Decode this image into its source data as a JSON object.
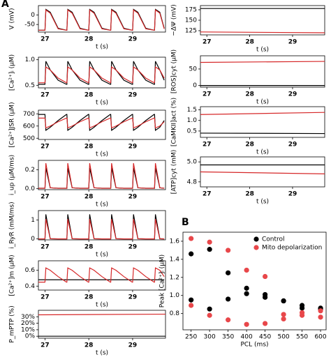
{
  "chart_data": [
    {
      "type": "line",
      "panel_label": "A",
      "ylabel": "V (mV)",
      "xlabel": "t (s)",
      "xlim": [
        26.85,
        29.75
      ],
      "xticks": [
        27,
        28,
        29
      ],
      "ylim": [
        -90,
        50
      ],
      "yticks": [
        -50,
        0
      ],
      "x": [
        26.85,
        27,
        27.02,
        27.12,
        27.3,
        27.49,
        27.5,
        27.52,
        27.62,
        27.8,
        27.99,
        28,
        28.02,
        28.12,
        28.3,
        28.49,
        28.5,
        28.52,
        28.62,
        28.8,
        28.99,
        29,
        29.02,
        29.12,
        29.3,
        29.49,
        29.5,
        29.52,
        29.62,
        29.72
      ],
      "series": [
        {
          "color": "#000000",
          "values": [
            -80,
            -80,
            30,
            15,
            -70,
            -80,
            -80,
            30,
            15,
            -70,
            -80,
            -80,
            30,
            15,
            -70,
            -80,
            -80,
            30,
            15,
            -70,
            -80,
            -80,
            30,
            15,
            -70,
            -80,
            -80,
            30,
            15,
            -70
          ]
        },
        {
          "color": "#d62728",
          "values": [
            -80,
            -80,
            27,
            10,
            -73,
            -80,
            -80,
            27,
            10,
            -73,
            -80,
            -80,
            27,
            10,
            -73,
            -80,
            -80,
            27,
            10,
            -73,
            -80,
            -80,
            27,
            10,
            -73,
            -80,
            -80,
            27,
            10,
            -73
          ]
        }
      ]
    },
    {
      "type": "line",
      "ylabel": "[Ca²⁺]ᵢ (µM)",
      "xlabel": "t (s)",
      "xlim": [
        26.85,
        29.75
      ],
      "xticks": [
        27,
        28,
        29
      ],
      "ylim": [
        0.45,
        1.05
      ],
      "yticks": [
        {
          "value": 0.5,
          "label": "0.5"
        },
        {
          "value": 1.0,
          "label": "1.0"
        }
      ],
      "x": [
        26.85,
        27,
        27.02,
        27.12,
        27.3,
        27.49,
        27.5,
        27.52,
        27.62,
        27.8,
        27.99,
        28,
        28.02,
        28.12,
        28.3,
        28.49,
        28.5,
        28.52,
        28.62,
        28.8,
        28.99,
        29,
        29.02,
        29.12,
        29.3,
        29.49,
        29.5,
        29.52,
        29.62,
        29.72
      ],
      "series": [
        {
          "color": "#000000",
          "values": [
            0.52,
            0.52,
            0.97,
            0.8,
            0.6,
            0.52,
            0.52,
            0.97,
            0.8,
            0.6,
            0.52,
            0.52,
            0.97,
            0.8,
            0.6,
            0.52,
            0.52,
            0.97,
            0.8,
            0.6,
            0.52,
            0.52,
            0.97,
            0.8,
            0.6,
            0.52,
            0.52,
            0.97,
            0.8,
            0.6
          ]
        },
        {
          "color": "#d62728",
          "values": [
            0.55,
            0.55,
            0.86,
            0.8,
            0.64,
            0.55,
            0.55,
            0.86,
            0.8,
            0.64,
            0.55,
            0.55,
            0.86,
            0.8,
            0.64,
            0.55,
            0.55,
            0.86,
            0.8,
            0.64,
            0.55,
            0.55,
            0.86,
            0.8,
            0.64,
            0.55,
            0.55,
            0.86,
            0.8,
            0.64
          ]
        }
      ]
    },
    {
      "type": "line",
      "ylabel": "[Ca²⁺]JSR (µM)",
      "xlabel": "t (s)",
      "xlim": [
        26.85,
        29.75
      ],
      "xticks": [
        27,
        28,
        29
      ],
      "ylim": [
        490,
        730
      ],
      "yticks": [
        500,
        600,
        700
      ],
      "x": [
        26.85,
        27,
        27.02,
        27.12,
        27.3,
        27.49,
        27.5,
        27.52,
        27.62,
        27.8,
        27.99,
        28,
        28.02,
        28.12,
        28.3,
        28.49,
        28.5,
        28.52,
        28.62,
        28.8,
        28.99,
        29,
        29.02,
        29.12,
        29.3,
        29.49,
        29.5,
        29.52,
        29.62,
        29.72
      ],
      "series": [
        {
          "color": "#000000",
          "values": [
            695,
            695,
            565,
            590,
            645,
            695,
            695,
            565,
            590,
            645,
            695,
            695,
            565,
            590,
            645,
            695,
            695,
            565,
            590,
            645,
            695,
            695,
            565,
            590,
            645,
            695,
            695,
            565,
            590,
            645
          ]
        },
        {
          "color": "#d62728",
          "values": [
            665,
            665,
            585,
            600,
            635,
            665,
            665,
            585,
            600,
            635,
            665,
            665,
            585,
            600,
            635,
            665,
            665,
            585,
            600,
            635,
            665,
            665,
            585,
            600,
            635,
            665,
            665,
            585,
            600,
            635
          ]
        }
      ]
    },
    {
      "type": "line",
      "ylabel": "i_up (µM/ms)",
      "xlabel": "t (s)",
      "xlim": [
        26.85,
        29.75
      ],
      "xticks": [
        27,
        28,
        29
      ],
      "ylim": [
        -0.01,
        0.3
      ],
      "yticks": [
        {
          "value": 0.0,
          "label": "0.0"
        },
        {
          "value": 0.2,
          "label": "0.2"
        }
      ],
      "x": [
        26.85,
        27,
        27.02,
        27.12,
        27.3,
        27.49,
        27.5,
        27.52,
        27.62,
        27.8,
        27.99,
        28,
        28.02,
        28.12,
        28.3,
        28.49,
        28.5,
        28.52,
        28.62,
        28.8,
        28.99,
        29,
        29.02,
        29.12,
        29.3,
        29.49,
        29.5,
        29.52,
        29.62,
        29.72
      ],
      "series": [
        {
          "color": "#000000",
          "values": [
            0.005,
            0.005,
            0.22,
            0.01,
            0.005,
            0.005,
            0.005,
            0.22,
            0.01,
            0.005,
            0.005,
            0.005,
            0.22,
            0.01,
            0.005,
            0.005,
            0.005,
            0.22,
            0.01,
            0.005,
            0.005,
            0.005,
            0.22,
            0.01,
            0.005,
            0.005,
            0.005,
            0.22,
            0.01,
            0.005
          ]
        },
        {
          "color": "#d62728",
          "values": [
            0.005,
            0.005,
            0.27,
            0.01,
            0.005,
            0.005,
            0.005,
            0.27,
            0.01,
            0.005,
            0.005,
            0.005,
            0.27,
            0.01,
            0.005,
            0.005,
            0.005,
            0.27,
            0.01,
            0.005,
            0.005,
            0.005,
            0.27,
            0.01,
            0.005,
            0.005,
            0.005,
            0.27,
            0.01,
            0.005
          ]
        }
      ]
    },
    {
      "type": "line",
      "ylabel": "i_RyR (mM/ms)",
      "xlabel": "t (s)",
      "xlim": [
        26.85,
        29.75
      ],
      "xticks": [
        27,
        28,
        29
      ],
      "ylim": [
        -0.05,
        1.5
      ],
      "yticks": [
        0,
        1
      ],
      "x": [
        26.85,
        27,
        27.02,
        27.12,
        27.3,
        27.49,
        27.5,
        27.52,
        27.62,
        27.8,
        27.99,
        28,
        28.02,
        28.12,
        28.3,
        28.49,
        28.5,
        28.52,
        28.62,
        28.8,
        28.99,
        29,
        29.02,
        29.12,
        29.3,
        29.49,
        29.5,
        29.52,
        29.62,
        29.72
      ],
      "series": [
        {
          "color": "#000000",
          "values": [
            0,
            0,
            1.3,
            0.01,
            0,
            0,
            0,
            1.3,
            0.01,
            0,
            0,
            0,
            1.3,
            0.01,
            0,
            0,
            0,
            1.3,
            0.01,
            0,
            0,
            0,
            1.3,
            0.01,
            0,
            0,
            0,
            1.3,
            0.01,
            0
          ]
        },
        {
          "color": "#d62728",
          "values": [
            0,
            0,
            1.05,
            0.01,
            0,
            0,
            0,
            1.05,
            0.01,
            0,
            0,
            0,
            1.05,
            0.01,
            0,
            0,
            0,
            1.05,
            0.01,
            0,
            0,
            0,
            1.05,
            0.01,
            0,
            0,
            0,
            1.05,
            0.01,
            0
          ]
        }
      ]
    },
    {
      "type": "line",
      "ylabel": "[Ca²⁺]m (µM)",
      "xlabel": "t (s)",
      "xlim": [
        26.85,
        29.75
      ],
      "xticks": [
        27,
        28,
        29
      ],
      "ylim": [
        0.35,
        0.72
      ],
      "yticks": [
        {
          "value": 0.4,
          "label": "0.4"
        },
        {
          "value": 0.6,
          "label": "0.6"
        }
      ],
      "x": [
        26.85,
        27,
        27.02,
        27.12,
        27.3,
        27.49,
        27.5,
        27.52,
        27.62,
        27.8,
        27.99,
        28,
        28.02,
        28.12,
        28.3,
        28.49,
        28.5,
        28.52,
        28.62,
        28.8,
        28.99,
        29,
        29.02,
        29.12,
        29.3,
        29.49,
        29.5,
        29.52,
        29.62,
        29.72
      ],
      "series": [
        {
          "color": "#000000",
          "values": [
            0.48,
            0.48,
            0.48,
            0.48,
            0.48,
            0.48,
            0.48,
            0.48,
            0.48,
            0.48,
            0.48,
            0.48,
            0.48,
            0.48,
            0.48,
            0.48,
            0.48,
            0.48,
            0.48,
            0.48,
            0.48,
            0.48,
            0.48,
            0.48,
            0.48,
            0.48,
            0.48,
            0.48,
            0.48,
            0.48
          ]
        },
        {
          "color": "#d62728",
          "values": [
            0.45,
            0.45,
            0.63,
            0.6,
            0.52,
            0.45,
            0.45,
            0.63,
            0.6,
            0.52,
            0.45,
            0.45,
            0.63,
            0.6,
            0.52,
            0.45,
            0.45,
            0.63,
            0.6,
            0.52,
            0.45,
            0.45,
            0.63,
            0.6,
            0.52,
            0.45,
            0.45,
            0.63,
            0.6,
            0.52
          ]
        }
      ]
    },
    {
      "type": "line",
      "ylabel": "P_mPTP (%)",
      "xlabel": "t (s)",
      "xlim": [
        26.85,
        29.75
      ],
      "xticks": [
        27,
        28,
        29
      ],
      "ylim": [
        -3,
        40
      ],
      "yticks": [
        {
          "value": 0,
          "label": "0%"
        },
        {
          "value": 10,
          "label": "10%"
        },
        {
          "value": 20,
          "label": "20%"
        },
        {
          "value": 30,
          "label": "30%"
        }
      ],
      "x": [
        26.85,
        29.75
      ],
      "series": [
        {
          "color": "#000000",
          "values": [
            0,
            0
          ]
        },
        {
          "color": "#d62728",
          "values": [
            33,
            34
          ]
        }
      ]
    },
    {
      "type": "line",
      "ylabel": "−ΔΨ (mV)",
      "xlabel": "t (s)",
      "xlim": [
        26.85,
        29.75
      ],
      "xticks": [
        27,
        28,
        29
      ],
      "ylim": [
        115,
        185
      ],
      "yticks": [
        125,
        150,
        175
      ],
      "x": [
        26.85,
        29.75
      ],
      "series": [
        {
          "color": "#000000",
          "values": [
            178,
            178
          ]
        },
        {
          "color": "#d62728",
          "values": [
            122,
            120
          ]
        }
      ]
    },
    {
      "type": "line",
      "ylabel": "[ROS]cyt (µM)",
      "xlabel": "t (s)",
      "xlim": [
        26.85,
        29.75
      ],
      "xticks": [
        27,
        28,
        29
      ],
      "ylim": [
        -5,
        90
      ],
      "yticks": [
        0,
        50
      ],
      "x": [
        26.85,
        29.75
      ],
      "series": [
        {
          "color": "#000000",
          "values": [
            0,
            0
          ]
        },
        {
          "color": "#d62728",
          "values": [
            70,
            73
          ]
        }
      ]
    },
    {
      "type": "line",
      "ylabel": "[CaMKII]act (%)",
      "xlabel": "t (s)",
      "xlim": [
        26.85,
        29.75
      ],
      "xticks": [
        27,
        28,
        29
      ],
      "ylim": [
        0.2,
        1.65
      ],
      "yticks": [
        {
          "value": 0.5,
          "label": "0.5"
        },
        {
          "value": 1.0,
          "label": "1.0"
        },
        {
          "value": 1.5,
          "label": "1.5"
        }
      ],
      "x": [
        26.85,
        29.75
      ],
      "series": [
        {
          "color": "#000000",
          "values": [
            0.4,
            0.38
          ]
        },
        {
          "color": "#d62728",
          "values": [
            1.28,
            1.38
          ]
        }
      ]
    },
    {
      "type": "line",
      "ylabel": "[ATP]cyt (mM)",
      "xlabel": "t (s)",
      "xlim": [
        26.85,
        29.75
      ],
      "xticks": [
        27,
        28,
        29
      ],
      "ylim": [
        4.75,
        5.05
      ],
      "yticks": [
        {
          "value": 4.8,
          "label": "4.8"
        },
        {
          "value": 5.0,
          "label": "5.0"
        }
      ],
      "x": [
        26.85,
        29.75
      ],
      "series": [
        {
          "color": "#000000",
          "values": [
            4.97,
            4.97
          ]
        },
        {
          "color": "#d62728",
          "values": [
            4.9,
            4.88
          ]
        }
      ]
    },
    {
      "type": "scatter",
      "panel_label": "B",
      "ylabel": "Peak [Ca²⁺]ᵢ (µM)",
      "xlabel": "PCL (ms)",
      "xlim": [
        228,
        615
      ],
      "xticks": [
        250,
        300,
        350,
        400,
        450,
        500,
        550,
        600
      ],
      "ylim": [
        0.62,
        1.7
      ],
      "yticks": [
        {
          "value": 0.8,
          "label": "0.8"
        },
        {
          "value": 1.0,
          "label": "1.0"
        },
        {
          "value": 1.2,
          "label": "1.2"
        },
        {
          "value": 1.4,
          "label": "1.4"
        },
        {
          "value": 1.6,
          "label": "1.6"
        }
      ],
      "legend": "upper right",
      "x": [
        250,
        250,
        300,
        300,
        350,
        350,
        400,
        400,
        450,
        450,
        500,
        500,
        550,
        550,
        600,
        600
      ],
      "series": [
        {
          "name": "Control",
          "color": "#000000",
          "values": [
            1.46,
            0.95,
            1.51,
            0.85,
            1.25,
            0.96,
            1.08,
            1.02,
            1.01,
            0.98,
            0.94,
            0.94,
            0.89,
            0.86,
            0.86,
            0.85
          ]
        },
        {
          "name": "Mito depolarization",
          "color": "#e8474a",
          "values": [
            1.63,
            0.89,
            1.59,
            0.78,
            1.5,
            0.73,
            1.28,
            0.68,
            1.21,
            0.69,
            0.79,
            0.74,
            0.81,
            0.78,
            0.83,
            0.76
          ]
        }
      ]
    }
  ]
}
